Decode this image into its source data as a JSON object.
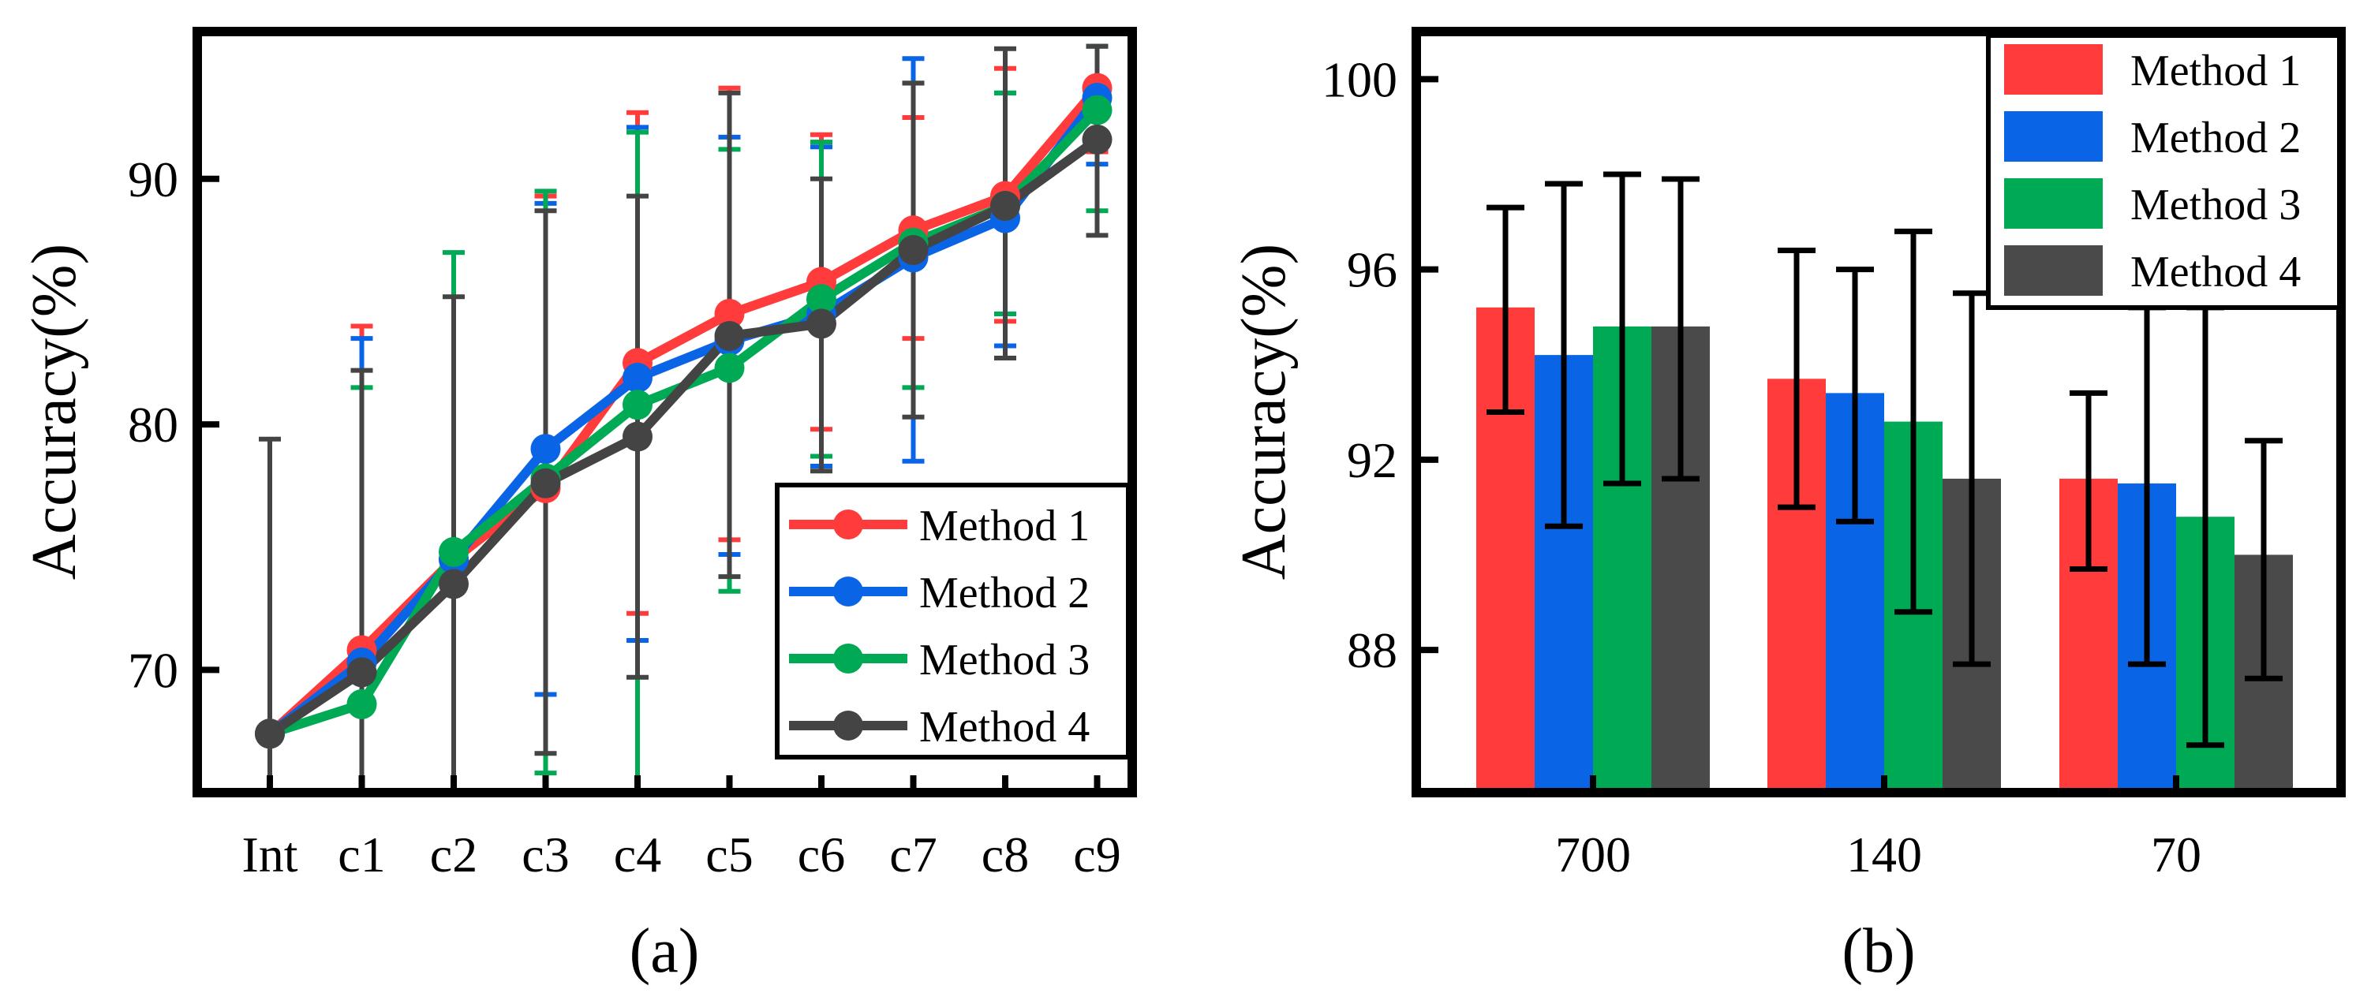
{
  "chart_data": [
    {
      "type": "line",
      "panel_label": "(a)",
      "ylabel": "Accuracy(%)",
      "xlabel": "",
      "categories": [
        "Int",
        "c1",
        "c2",
        "c3",
        "c4",
        "c5",
        "c6",
        "c7",
        "c8",
        "c9"
      ],
      "ylim": [
        65,
        96
      ],
      "yticks": [
        70,
        80,
        90
      ],
      "legend_position": "bottom-right",
      "series": [
        {
          "name": "Method 1",
          "color": "#ff3b3b",
          "values": [
            67.4,
            70.8,
            74.5,
            77.4,
            82.5,
            84.5,
            85.8,
            87.9,
            89.3,
            93.7
          ],
          "err_low": [
            null,
            65.0,
            null,
            65.0,
            72.3,
            75.3,
            79.8,
            83.5,
            84.2,
            91.1
          ],
          "err_high": [
            null,
            84.0,
            null,
            89.3,
            92.7,
            93.7,
            91.8,
            92.5,
            94.5,
            95.4
          ]
        },
        {
          "name": "Method 2",
          "color": "#0a64e6",
          "values": [
            67.4,
            70.3,
            74.5,
            79.0,
            81.9,
            83.4,
            84.5,
            86.8,
            88.4,
            93.3
          ],
          "err_low": [
            null,
            65.0,
            null,
            69.0,
            71.2,
            74.7,
            78.3,
            78.5,
            83.2,
            90.6
          ],
          "err_high": [
            null,
            83.5,
            null,
            89.0,
            92.1,
            91.7,
            91.3,
            94.9,
            93.5,
            95.4
          ]
        },
        {
          "name": "Method 3",
          "color": "#00aa55",
          "values": [
            67.4,
            68.6,
            74.8,
            77.8,
            80.8,
            82.3,
            85.1,
            87.4,
            88.9,
            92.8
          ],
          "err_low": [
            null,
            65.0,
            65.0,
            65.8,
            65.0,
            73.2,
            78.7,
            81.5,
            84.5,
            88.7
          ],
          "err_high": [
            null,
            81.5,
            87.0,
            89.5,
            91.9,
            91.2,
            91.5,
            93.9,
            93.5,
            95.4
          ]
        },
        {
          "name": "Method 4",
          "color": "#444444",
          "values": [
            67.4,
            69.9,
            73.5,
            77.6,
            79.5,
            83.6,
            84.1,
            87.1,
            88.9,
            91.6
          ],
          "err_low": [
            65.0,
            65.0,
            65.0,
            66.6,
            69.7,
            73.8,
            78.1,
            80.3,
            82.7,
            87.7
          ],
          "err_high": [
            79.4,
            82.2,
            85.2,
            88.7,
            89.3,
            93.5,
            90.0,
            93.9,
            95.3,
            95.4
          ]
        }
      ]
    },
    {
      "type": "bar",
      "panel_label": "(b)",
      "ylabel": "Accuracy(%)",
      "xlabel": "",
      "categories": [
        "700",
        "140",
        "70"
      ],
      "ylim": [
        85,
        101
      ],
      "yticks": [
        88,
        92,
        96,
        100
      ],
      "legend_position": "top-right",
      "series": [
        {
          "name": "Method 1",
          "color": "#ff3b3b",
          "values": [
            95.2,
            93.7,
            91.6
          ],
          "err_low": [
            93.0,
            91.0,
            89.7
          ],
          "err_high": [
            97.3,
            96.4,
            93.4
          ]
        },
        {
          "name": "Method 2",
          "color": "#0a64e6",
          "values": [
            94.2,
            93.4,
            91.5
          ],
          "err_low": [
            90.6,
            90.7,
            87.7
          ],
          "err_high": [
            97.8,
            96.0,
            95.2
          ]
        },
        {
          "name": "Method 3",
          "color": "#00aa55",
          "values": [
            94.8,
            92.8,
            90.8
          ],
          "err_low": [
            91.5,
            88.8,
            86.0
          ],
          "err_high": [
            98.0,
            96.8,
            95.2
          ]
        },
        {
          "name": "Method 4",
          "color": "#4a4a4a",
          "values": [
            94.8,
            91.6,
            90.0
          ],
          "err_low": [
            91.6,
            87.7,
            87.4
          ],
          "err_high": [
            97.9,
            95.5,
            92.4
          ]
        }
      ]
    }
  ]
}
